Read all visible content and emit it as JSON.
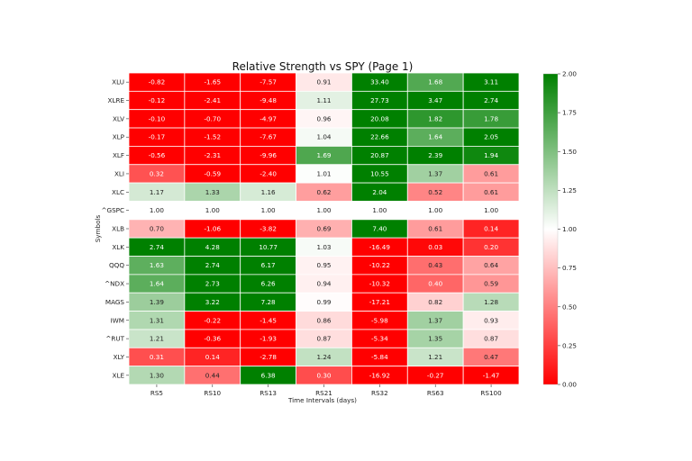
{
  "chart_data": {
    "type": "heatmap",
    "title": "Relative Strength vs SPY (Page 1)",
    "xlabel": "Time Intervals (days)",
    "ylabel": "Symbols",
    "columns": [
      "RS5",
      "RS10",
      "RS13",
      "RS21",
      "RS32",
      "RS63",
      "RS100"
    ],
    "rows": [
      {
        "symbol": "XLU",
        "values": [
          "-0.82",
          "-1.65",
          "-7.57",
          "0.91",
          "33.40",
          "1.68",
          "3.11"
        ]
      },
      {
        "symbol": "XLRE",
        "values": [
          "-0.12",
          "-2.41",
          "-9.48",
          "1.11",
          "27.73",
          "3.47",
          "2.74"
        ]
      },
      {
        "symbol": "XLV",
        "values": [
          "-0.10",
          "-0.70",
          "-4.97",
          "0.96",
          "20.08",
          "1.82",
          "1.78"
        ]
      },
      {
        "symbol": "XLP",
        "values": [
          "-0.17",
          "-1.52",
          "-7.67",
          "1.04",
          "22.66",
          "1.64",
          "2.05"
        ]
      },
      {
        "symbol": "XLF",
        "values": [
          "-0.56",
          "-2.31",
          "-9.96",
          "1.69",
          "20.87",
          "2.39",
          "1.94"
        ]
      },
      {
        "symbol": "XLI",
        "values": [
          "0.32",
          "-0.59",
          "-2.40",
          "1.01",
          "10.55",
          "1.37",
          "0.61"
        ]
      },
      {
        "symbol": "XLC",
        "values": [
          "1.17",
          "1.33",
          "1.16",
          "0.62",
          "2.04",
          "0.52",
          "0.61"
        ]
      },
      {
        "symbol": "^GSPC",
        "values": [
          "1.00",
          "1.00",
          "1.00",
          "1.00",
          "1.00",
          "1.00",
          "1.00"
        ]
      },
      {
        "symbol": "XLB",
        "values": [
          "0.70",
          "-1.06",
          "-3.82",
          "0.69",
          "7.40",
          "0.61",
          "0.14"
        ]
      },
      {
        "symbol": "XLK",
        "values": [
          "2.74",
          "4.28",
          "10.77",
          "1.03",
          "-16.49",
          "0.03",
          "0.20"
        ]
      },
      {
        "symbol": "QQQ",
        "values": [
          "1.63",
          "2.74",
          "6.17",
          "0.95",
          "-10.22",
          "0.43",
          "0.64"
        ]
      },
      {
        "symbol": "^NDX",
        "values": [
          "1.64",
          "2.73",
          "6.26",
          "0.94",
          "-10.32",
          "0.40",
          "0.59"
        ]
      },
      {
        "symbol": "MAGS",
        "values": [
          "1.39",
          "3.22",
          "7.28",
          "0.99",
          "-17.21",
          "0.82",
          "1.28"
        ]
      },
      {
        "symbol": "IWM",
        "values": [
          "1.31",
          "-0.22",
          "-1.45",
          "0.86",
          "-5.98",
          "1.37",
          "0.93"
        ]
      },
      {
        "symbol": "^RUT",
        "values": [
          "1.21",
          "-0.36",
          "-1.93",
          "0.87",
          "-5.34",
          "1.35",
          "0.87"
        ]
      },
      {
        "symbol": "XLY",
        "values": [
          "0.31",
          "0.14",
          "-2.78",
          "1.24",
          "-5.84",
          "1.21",
          "0.47"
        ]
      },
      {
        "symbol": "XLE",
        "values": [
          "1.30",
          "0.44",
          "6.38",
          "0.30",
          "-16.92",
          "-0.27",
          "-1.47"
        ]
      }
    ],
    "color_range": [
      0,
      2
    ],
    "colorbar_ticks": [
      "0.00",
      "0.25",
      "0.50",
      "0.75",
      "1.00",
      "1.25",
      "1.50",
      "1.75",
      "2.00"
    ],
    "colors": {
      "low": "#ff0000",
      "mid": "#ffffff",
      "high": "#008000"
    },
    "grid": true,
    "legend": "colorbar-right"
  }
}
